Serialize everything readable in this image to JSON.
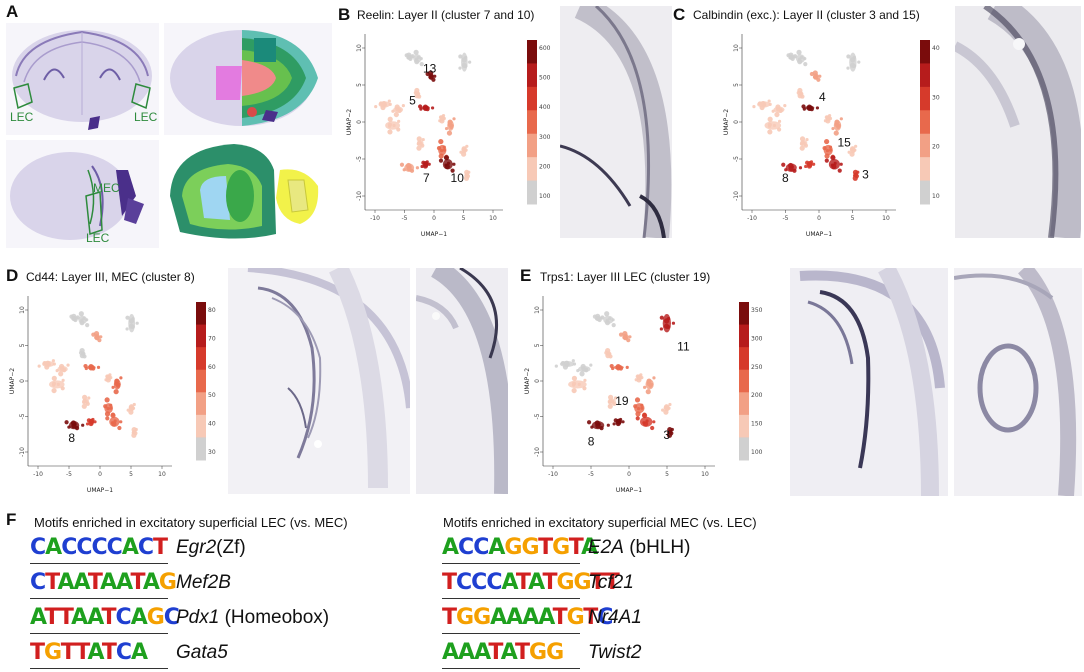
{
  "figure": {
    "panel_labels": {
      "a": "A",
      "b": "B",
      "c": "C",
      "d": "D",
      "e": "E",
      "f": "F"
    }
  },
  "panel_a": {
    "region_labels": [
      "LEC",
      "LEC",
      "MEC",
      "LEC"
    ],
    "colors": {
      "outline": "#2e8b3d",
      "stain": "#8a7ab8"
    }
  },
  "umap_panels": [
    {
      "id": "b",
      "title": "Reelin: Layer II (cluster 7 and 10)",
      "xlabel": "UMAP−1",
      "ylabel": "UMAP−2",
      "colorbar_ticks": [
        "600",
        "500",
        "400",
        "300",
        "200",
        "100"
      ],
      "cluster_labels": [
        "13",
        "5",
        "7",
        "10"
      ]
    },
    {
      "id": "c",
      "title": "Calbindin (exc.): Layer II (cluster 3 and 15)",
      "xlabel": "UMAP−1",
      "ylabel": "UMAP−2",
      "colorbar_ticks": [
        "40",
        "30",
        "20",
        "10"
      ],
      "cluster_labels": [
        "4",
        "15",
        "8",
        "3"
      ]
    },
    {
      "id": "d",
      "title": "Cd44: Layer III, MEC (cluster 8)",
      "xlabel": "UMAP−1",
      "ylabel": "UMAP−2",
      "colorbar_ticks": [
        "80",
        "70",
        "60",
        "50",
        "40",
        "30"
      ],
      "cluster_labels": [
        "8"
      ]
    },
    {
      "id": "e",
      "title": "Trps1: Layer III LEC (cluster 19)",
      "xlabel": "UMAP−1",
      "ylabel": "UMAP−2",
      "colorbar_ticks": [
        "350",
        "300",
        "250",
        "200",
        "150",
        "100"
      ],
      "cluster_labels": [
        "11",
        "19",
        "8",
        "3"
      ]
    }
  ],
  "umap_axis_ticks": {
    "x": [
      "-10",
      "-5",
      "0",
      "5",
      "10"
    ],
    "y": [
      "10",
      "5",
      "0",
      "-5",
      "-10"
    ]
  },
  "panel_f": {
    "left_heading": "Motifs enriched in excitatory superficial LEC (vs. MEC)",
    "right_heading": "Motifs enriched in excitatory superficial MEC (vs. LEC)",
    "left_motifs": [
      {
        "gene": "Egr2",
        "suffix": "(Zf)",
        "logo": "CACCCCACT"
      },
      {
        "gene": "Mef2B",
        "suffix": "",
        "logo": "CTAATAATAG"
      },
      {
        "gene": "Pdx1",
        "suffix": " (Homeobox)",
        "logo": "ATTAATCAGC"
      },
      {
        "gene": "Gata5",
        "suffix": "",
        "logo": "TGTTATCA"
      }
    ],
    "right_motifs": [
      {
        "gene": "E2A",
        "suffix": " (bHLH)",
        "logo": "ACCAGGTGTA"
      },
      {
        "gene": "Tcf21",
        "suffix": "",
        "logo": "TCCCATATGGTT"
      },
      {
        "gene": "Nr4A1",
        "suffix": "",
        "logo": "TGGAAAATGTC"
      },
      {
        "gene": "Twist2",
        "suffix": "",
        "logo": "AAATATGG"
      }
    ],
    "nucleotide_colors": {
      "A": "#1ea01e",
      "C": "#1f3fd1",
      "G": "#f5a000",
      "T": "#d11f1f"
    }
  }
}
